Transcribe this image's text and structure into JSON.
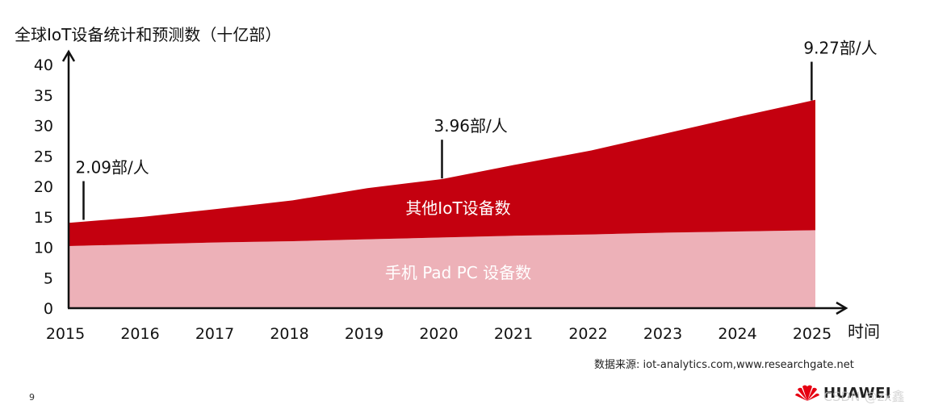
{
  "chart_data": {
    "type": "area",
    "title": "全球IoT设备统计和预测数（十亿部）",
    "xlabel": "时间",
    "ylabel": "",
    "x": [
      "2015",
      "2016",
      "2017",
      "2018",
      "2019",
      "2020",
      "2021",
      "2022",
      "2023",
      "2024",
      "2025"
    ],
    "ylim": [
      0,
      40
    ],
    "yticks": [
      "0",
      "5",
      "10",
      "15",
      "20",
      "25",
      "30",
      "35",
      "40"
    ],
    "stacked": true,
    "grid": false,
    "series": [
      {
        "name": "手机 Pad PC 设备数",
        "color": "#EDB1B8",
        "values": [
          10.2,
          10.5,
          10.8,
          11.0,
          11.3,
          11.6,
          11.9,
          12.1,
          12.4,
          12.6,
          12.8
        ]
      },
      {
        "name": "其他IoT设备数",
        "color": "#C4000F",
        "values": [
          3.8,
          4.5,
          5.5,
          6.7,
          8.4,
          9.6,
          11.7,
          13.8,
          16.3,
          18.9,
          21.4
        ]
      }
    ],
    "annotations": [
      {
        "text": "2.09部/人",
        "x": 2015.2,
        "y": 14.5
      },
      {
        "text": "3.96部/人",
        "x": 2020.0,
        "y": 21.3
      },
      {
        "text": "9.27部/人",
        "x": 2024.95,
        "y": 34.1
      }
    ]
  },
  "source_text": "数据来源: iot-analytics.com,www.researchgate.net",
  "page_number": "9",
  "brand": {
    "name": "HUAWEI",
    "color": "#E60012"
  },
  "watermark": "CSDN @zx鑫"
}
